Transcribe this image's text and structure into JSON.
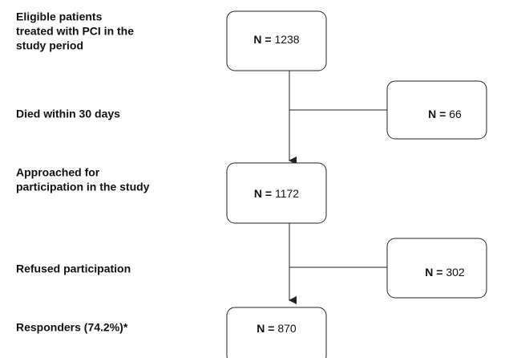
{
  "steps": [
    {
      "label": [
        "Eligible patients",
        "treated with PCI in the",
        "study period"
      ],
      "n_prefix": "N =",
      "n": 1238
    },
    {
      "label": [
        "Approached for",
        "participation in the study"
      ],
      "n_prefix": "N =",
      "n": 1172
    },
    {
      "label": [
        "Responders (74.2%)*"
      ],
      "n_prefix": "N =",
      "n": 870
    }
  ],
  "exclusions": [
    {
      "label": [
        "Died within 30 days"
      ],
      "n_prefix": "N =",
      "n": 66
    },
    {
      "label": [
        "Refused participation"
      ],
      "n_prefix": "N =",
      "n": 302
    }
  ]
}
